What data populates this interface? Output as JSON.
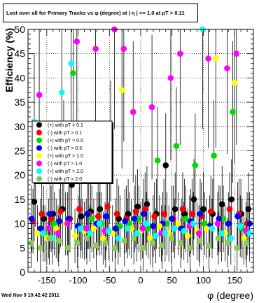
{
  "footer": {
    "timestamp": "Wed Nov  9 10:42:42 2011"
  },
  "chart_data": {
    "type": "scatter",
    "title": "Lost over all for Primary Tracks vs φ (degree) at | η | <= 1.0 at pT > 0.11",
    "xlabel": "φ (degree)",
    "ylabel": "Efficiency (%)",
    "xlim": [
      -180,
      180
    ],
    "ylim": [
      0,
      50
    ],
    "x_ticks": [
      -150,
      -100,
      -50,
      0,
      50,
      100,
      150
    ],
    "x_tick_labels": [
      "-150",
      "-100",
      "-50",
      "0",
      "50",
      "100",
      "150"
    ],
    "y_ticks": [
      0,
      5,
      10,
      15,
      20,
      25,
      30,
      35,
      40,
      45,
      50
    ],
    "y_tick_labels": [
      "0",
      "5",
      "10",
      "15",
      "20",
      "25",
      "30",
      "35",
      "40",
      "45",
      "50"
    ],
    "grid": true,
    "legend_position": "left, mid-height",
    "series": [
      {
        "name": "(+) with pT > 0.1",
        "color": "#000000",
        "x": [
          -170,
          -155,
          -140,
          -125,
          -110,
          -95,
          -80,
          -65,
          -50,
          -35,
          -20,
          -5,
          10,
          25,
          40,
          55,
          70,
          85,
          100,
          115,
          130,
          145,
          160,
          172
        ],
        "y": [
          14.5,
          11.0,
          12.0,
          13.0,
          18.0,
          11.5,
          12.5,
          13.0,
          20.0,
          11.0,
          12.0,
          13.5,
          14.0,
          12.0,
          22.0,
          13.0,
          12.0,
          15.0,
          13.0,
          12.0,
          14.0,
          15.0,
          12.0,
          13.0
        ]
      },
      {
        "name": "(-) with pT > 0.1",
        "color": "#ff0000",
        "x": [
          -172,
          -158,
          -143,
          -128,
          -113,
          -98,
          -83,
          -68,
          -53,
          -38,
          -23,
          -8,
          7,
          22,
          37,
          52,
          67,
          82,
          97,
          112,
          127,
          142,
          157,
          170
        ],
        "y": [
          10.5,
          12.0,
          11.0,
          12.5,
          11.0,
          13.0,
          12.0,
          11.5,
          13.5,
          12.0,
          11.0,
          12.5,
          13.0,
          11.5,
          12.0,
          11.0,
          13.0,
          12.0,
          11.5,
          12.5,
          11.0,
          13.0,
          12.0,
          10.0
        ]
      },
      {
        "name": "(+) with pT > 0.5",
        "color": "#00dd00",
        "x": [
          -168,
          -153,
          -138,
          -123,
          -108,
          -93,
          -78,
          -63,
          -48,
          -33,
          -18,
          -3,
          12,
          27,
          42,
          57,
          72,
          87,
          102,
          117,
          132,
          147,
          162
        ],
        "y": [
          19.0,
          8.0,
          10.0,
          24.0,
          41.0,
          9.0,
          11.0,
          10.0,
          27.0,
          9.5,
          10.0,
          11.0,
          9.0,
          23.0,
          10.0,
          26.0,
          11.0,
          22.0,
          10.0,
          24.0,
          11.0,
          33.0,
          9.0
        ]
      },
      {
        "name": "(-) with pT > 0.5",
        "color": "#0000ff",
        "x": [
          -174,
          -160,
          -145,
          -130,
          -115,
          -100,
          -85,
          -70,
          -55,
          -40,
          -25,
          -10,
          5,
          20,
          35,
          50,
          65,
          80,
          95,
          110,
          125,
          140,
          155,
          174
        ],
        "y": [
          11.0,
          9.0,
          12.0,
          10.5,
          11.0,
          9.5,
          12.0,
          10.0,
          11.5,
          9.0,
          10.5,
          11.0,
          12.0,
          9.5,
          10.0,
          11.0,
          9.0,
          10.5,
          12.0,
          9.5,
          11.0,
          10.0,
          11.5,
          10.0
        ]
      },
      {
        "name": "(+) with pT > 1.0",
        "color": "#ffff00",
        "x": [
          -165,
          -150,
          -135,
          -120,
          -105,
          -90,
          -75,
          -60,
          -45,
          -30,
          -15,
          0,
          15,
          30,
          45,
          60,
          75,
          90,
          105,
          120,
          135,
          150,
          165
        ],
        "y": [
          8.0,
          7.0,
          9.0,
          10.0,
          7.5,
          8.5,
          9.0,
          7.0,
          8.0,
          37.5,
          9.0,
          8.5,
          7.0,
          9.5,
          8.0,
          10.0,
          7.5,
          8.5,
          9.0,
          44.0,
          8.0,
          39.0,
          7.0
        ]
      },
      {
        "name": "(-) with pT > 1.0",
        "color": "#ff00ff",
        "x": [
          -162,
          -147,
          -132,
          -117,
          -102,
          -87,
          -72,
          -57,
          -42,
          -27,
          -12,
          3,
          18,
          33,
          48,
          63,
          78,
          93,
          108,
          123,
          138,
          153,
          168
        ],
        "y": [
          36.5,
          9.0,
          8.0,
          10.0,
          47.5,
          9.0,
          46.0,
          8.5,
          50.0,
          46.0,
          33.0,
          9.0,
          34.0,
          8.0,
          40.0,
          45.0,
          9.5,
          8.0,
          44.0,
          10.0,
          42.0,
          45.0,
          8.5
        ]
      },
      {
        "name": "(+) with pT > 2.0",
        "color": "#00ffff",
        "x": [
          -170,
          -156,
          -141,
          -126,
          -111,
          -96,
          -81,
          -66,
          -51,
          -36,
          -21,
          -6,
          9,
          24,
          39,
          54,
          69,
          84,
          99,
          114,
          129,
          144,
          159,
          174
        ],
        "y": [
          31.0,
          8.0,
          7.0,
          37.0,
          43.0,
          9.0,
          8.0,
          10.0,
          8.5,
          7.0,
          9.0,
          8.0,
          10.0,
          7.5,
          8.0,
          9.0,
          8.5,
          10.0,
          50.0,
          9.0,
          8.0,
          7.0,
          9.5,
          8.0
        ]
      },
      {
        "name": "(-) with pT > 2.0",
        "color": "#88cc55",
        "x": [
          -175,
          -160,
          -146,
          -131,
          -116,
          -101,
          -86,
          -71,
          -56,
          -41,
          -26,
          -11,
          4,
          19,
          34,
          49,
          64,
          79,
          94,
          109,
          124,
          139,
          154,
          169
        ],
        "y": [
          6.0,
          5.0,
          7.0,
          6.5,
          5.0,
          6.0,
          7.0,
          5.5,
          6.0,
          5.0,
          6.5,
          7.0,
          5.0,
          6.0,
          5.5,
          7.0,
          6.0,
          5.0,
          6.5,
          5.5,
          7.0,
          6.0,
          5.0,
          6.0
        ]
      }
    ]
  }
}
